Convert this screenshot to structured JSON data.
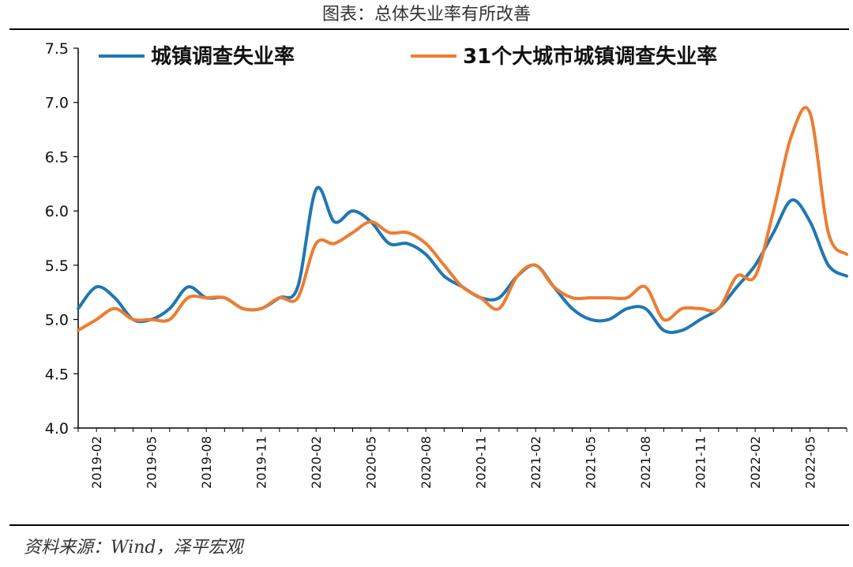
{
  "chart_data": {
    "type": "line",
    "title": "图表：总体失业率有所改善",
    "source": "资料来源：Wind，泽平宏观",
    "ylim": [
      4.0,
      7.5
    ],
    "yticks": [
      "4.0",
      "4.5",
      "5.0",
      "5.5",
      "6.0",
      "6.5",
      "7.0",
      "7.5"
    ],
    "x_tick_labels": [
      "2019-02",
      "2019-05",
      "2019-08",
      "2019-11",
      "2020-02",
      "2020-05",
      "2020-08",
      "2020-11",
      "2021-02",
      "2021-05",
      "2021-08",
      "2021-11",
      "2022-02",
      "2022-05"
    ],
    "x": [
      "2019-01",
      "2019-02",
      "2019-03",
      "2019-04",
      "2019-05",
      "2019-06",
      "2019-07",
      "2019-08",
      "2019-09",
      "2019-10",
      "2019-11",
      "2019-12",
      "2020-01",
      "2020-02",
      "2020-03",
      "2020-04",
      "2020-05",
      "2020-06",
      "2020-07",
      "2020-08",
      "2020-09",
      "2020-10",
      "2020-11",
      "2020-12",
      "2021-01",
      "2021-02",
      "2021-03",
      "2021-04",
      "2021-05",
      "2021-06",
      "2021-07",
      "2021-08",
      "2021-09",
      "2021-10",
      "2021-11",
      "2021-12",
      "2022-01",
      "2022-02",
      "2022-03",
      "2022-04",
      "2022-05",
      "2022-06",
      "2022-07"
    ],
    "legend_position": "top",
    "grid": false,
    "series": [
      {
        "name": "城镇调查失业率",
        "color": "#1f77b4",
        "values": [
          5.1,
          5.3,
          5.2,
          5.0,
          5.0,
          5.1,
          5.3,
          5.2,
          5.2,
          5.1,
          5.1,
          5.2,
          5.3,
          6.2,
          5.9,
          6.0,
          5.9,
          5.7,
          5.7,
          5.6,
          5.4,
          5.3,
          5.2,
          5.2,
          5.4,
          5.5,
          5.3,
          5.1,
          5.0,
          5.0,
          5.1,
          5.1,
          4.9,
          4.9,
          5.0,
          5.1,
          5.3,
          5.5,
          5.8,
          6.1,
          5.9,
          5.5,
          5.4
        ]
      },
      {
        "name": "31个大城市城镇调查失业率",
        "color": "#ed7d31",
        "values": [
          4.9,
          5.0,
          5.1,
          5.0,
          5.0,
          5.0,
          5.2,
          5.2,
          5.2,
          5.1,
          5.1,
          5.2,
          5.2,
          5.7,
          5.7,
          5.8,
          5.9,
          5.8,
          5.8,
          5.7,
          5.5,
          5.3,
          5.2,
          5.1,
          5.4,
          5.5,
          5.3,
          5.2,
          5.2,
          5.2,
          5.2,
          5.3,
          5.0,
          5.1,
          5.1,
          5.1,
          5.4,
          5.4,
          6.0,
          6.7,
          6.9,
          5.8,
          5.6
        ]
      }
    ]
  }
}
